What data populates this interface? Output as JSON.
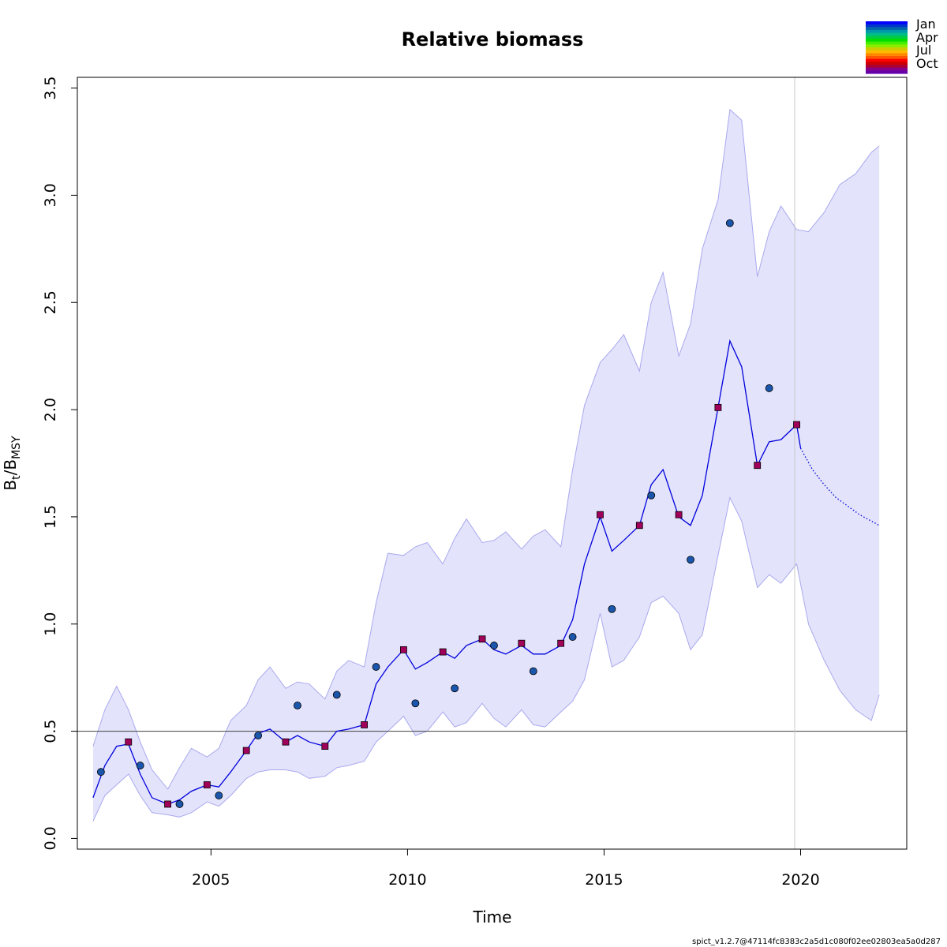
{
  "chart_data": {
    "type": "line",
    "title": "Relative biomass",
    "xlabel": "Time",
    "ylabel_main": "B",
    "ylabel_sub1": "t",
    "ylabel_sep": "/B",
    "ylabel_sub2": "MSY",
    "xlim": [
      2001.6,
      2022.7
    ],
    "ylim": [
      -0.05,
      3.55
    ],
    "x_ticks": [
      2005,
      2010,
      2015,
      2020
    ],
    "y_ticks": [
      0.0,
      0.5,
      1.0,
      1.5,
      2.0,
      2.5,
      3.0,
      3.5
    ],
    "x_tick_labels": [
      "2005",
      "2010",
      "2015",
      "2020"
    ],
    "y_tick_labels": [
      "0.0",
      "0.5",
      "1.0",
      "1.5",
      "2.0",
      "2.5",
      "3.0",
      "3.5"
    ],
    "reference_line_y": 0.5,
    "vertical_line_x": 2019.85,
    "colors": {
      "band_fill": "#e3e3fb",
      "band_edge": "#a9a9ee",
      "estimate_line": "#0000dd",
      "jan_points": "#1a56ab",
      "oct_points": "#a0005a",
      "reference_line": "#555555",
      "vertical_line": "#c8c8c8"
    },
    "series": [
      {
        "key": "estimate",
        "x": [
          2002.0,
          2002.3,
          2002.6,
          2002.9,
          2003.2,
          2003.5,
          2003.9,
          2004.2,
          2004.5,
          2004.9,
          2005.2,
          2005.5,
          2005.9,
          2006.2,
          2006.5,
          2006.9,
          2007.2,
          2007.5,
          2007.9,
          2008.2,
          2008.5,
          2008.9,
          2009.2,
          2009.5,
          2009.9,
          2010.2,
          2010.5,
          2010.9,
          2011.2,
          2011.5,
          2011.9,
          2012.2,
          2012.5,
          2012.9,
          2013.2,
          2013.5,
          2013.9,
          2014.2,
          2014.5,
          2014.9,
          2015.2,
          2015.5,
          2015.9,
          2016.2,
          2016.5,
          2016.9,
          2017.2,
          2017.5,
          2017.9,
          2018.2,
          2018.5,
          2018.9,
          2019.2,
          2019.5,
          2019.9,
          2020.0
        ],
        "y": [
          0.19,
          0.34,
          0.43,
          0.44,
          0.3,
          0.19,
          0.16,
          0.18,
          0.22,
          0.25,
          0.24,
          0.31,
          0.41,
          0.49,
          0.51,
          0.45,
          0.48,
          0.45,
          0.43,
          0.5,
          0.51,
          0.53,
          0.72,
          0.8,
          0.88,
          0.79,
          0.82,
          0.87,
          0.84,
          0.9,
          0.93,
          0.88,
          0.86,
          0.9,
          0.86,
          0.86,
          0.9,
          1.02,
          1.28,
          1.5,
          1.34,
          1.39,
          1.46,
          1.65,
          1.72,
          1.5,
          1.46,
          1.6,
          2.01,
          2.32,
          2.2,
          1.74,
          1.85,
          1.86,
          1.93,
          1.82
        ]
      },
      {
        "key": "forecast",
        "x": [
          2020.0,
          2020.3,
          2020.6,
          2020.9,
          2021.2,
          2021.5,
          2021.8,
          2022.0
        ],
        "y": [
          1.82,
          1.72,
          1.65,
          1.59,
          1.55,
          1.51,
          1.48,
          1.46
        ]
      },
      {
        "key": "ci_upper",
        "x": [
          2002.0,
          2002.3,
          2002.6,
          2002.9,
          2003.2,
          2003.5,
          2003.9,
          2004.2,
          2004.5,
          2004.9,
          2005.2,
          2005.5,
          2005.9,
          2006.2,
          2006.5,
          2006.9,
          2007.2,
          2007.5,
          2007.9,
          2008.2,
          2008.5,
          2008.9,
          2009.2,
          2009.5,
          2009.9,
          2010.2,
          2010.5,
          2010.9,
          2011.2,
          2011.5,
          2011.9,
          2012.2,
          2012.5,
          2012.9,
          2013.2,
          2013.5,
          2013.9,
          2014.2,
          2014.5,
          2014.9,
          2015.2,
          2015.5,
          2015.9,
          2016.2,
          2016.5,
          2016.9,
          2017.2,
          2017.5,
          2017.9,
          2018.2,
          2018.5,
          2018.9,
          2019.2,
          2019.5,
          2019.9,
          2020.2,
          2020.6,
          2021.0,
          2021.4,
          2021.8,
          2022.0
        ],
        "y": [
          0.43,
          0.6,
          0.71,
          0.6,
          0.45,
          0.32,
          0.23,
          0.33,
          0.42,
          0.38,
          0.42,
          0.55,
          0.62,
          0.74,
          0.8,
          0.7,
          0.73,
          0.72,
          0.65,
          0.78,
          0.83,
          0.8,
          1.1,
          1.33,
          1.32,
          1.36,
          1.38,
          1.28,
          1.4,
          1.49,
          1.38,
          1.39,
          1.43,
          1.35,
          1.41,
          1.44,
          1.36,
          1.72,
          2.02,
          2.22,
          2.28,
          2.35,
          2.18,
          2.5,
          2.64,
          2.25,
          2.4,
          2.75,
          2.98,
          3.4,
          3.35,
          2.62,
          2.83,
          2.95,
          2.84,
          2.83,
          2.92,
          3.05,
          3.1,
          3.2,
          3.23
        ]
      },
      {
        "key": "ci_lower",
        "x": [
          2002.0,
          2002.3,
          2002.6,
          2002.9,
          2003.2,
          2003.5,
          2003.9,
          2004.2,
          2004.5,
          2004.9,
          2005.2,
          2005.5,
          2005.9,
          2006.2,
          2006.5,
          2006.9,
          2007.2,
          2007.5,
          2007.9,
          2008.2,
          2008.5,
          2008.9,
          2009.2,
          2009.5,
          2009.9,
          2010.2,
          2010.5,
          2010.9,
          2011.2,
          2011.5,
          2011.9,
          2012.2,
          2012.5,
          2012.9,
          2013.2,
          2013.5,
          2013.9,
          2014.2,
          2014.5,
          2014.9,
          2015.2,
          2015.5,
          2015.9,
          2016.2,
          2016.5,
          2016.9,
          2017.2,
          2017.5,
          2017.9,
          2018.2,
          2018.5,
          2018.9,
          2019.2,
          2019.5,
          2019.9,
          2020.2,
          2020.6,
          2021.0,
          2021.4,
          2021.8,
          2022.0
        ],
        "y": [
          0.08,
          0.2,
          0.25,
          0.3,
          0.2,
          0.12,
          0.11,
          0.1,
          0.12,
          0.17,
          0.15,
          0.2,
          0.28,
          0.31,
          0.32,
          0.32,
          0.31,
          0.28,
          0.29,
          0.33,
          0.34,
          0.36,
          0.45,
          0.5,
          0.57,
          0.48,
          0.5,
          0.59,
          0.52,
          0.54,
          0.63,
          0.56,
          0.52,
          0.6,
          0.53,
          0.52,
          0.59,
          0.64,
          0.74,
          1.05,
          0.8,
          0.83,
          0.94,
          1.1,
          1.13,
          1.05,
          0.88,
          0.95,
          1.32,
          1.59,
          1.48,
          1.17,
          1.23,
          1.19,
          1.28,
          1.0,
          0.83,
          0.69,
          0.6,
          0.55,
          0.67
        ]
      }
    ],
    "observations_jan": {
      "x": [
        2002.2,
        2003.2,
        2004.2,
        2005.2,
        2006.2,
        2007.2,
        2008.2,
        2009.2,
        2010.2,
        2011.2,
        2012.2,
        2013.2,
        2014.2,
        2015.2,
        2016.2,
        2017.2,
        2018.2,
        2019.2
      ],
      "y": [
        0.31,
        0.34,
        0.16,
        0.2,
        0.48,
        0.62,
        0.67,
        0.8,
        0.63,
        0.7,
        0.9,
        0.78,
        0.94,
        1.07,
        1.6,
        1.3,
        2.87,
        2.1
      ]
    },
    "observations_oct": {
      "x": [
        2002.9,
        2003.9,
        2004.9,
        2005.9,
        2006.9,
        2007.9,
        2008.9,
        2009.9,
        2010.9,
        2011.9,
        2012.9,
        2013.9,
        2014.9,
        2015.9,
        2016.9,
        2017.9,
        2018.9,
        2019.9
      ],
      "y": [
        0.45,
        0.16,
        0.25,
        0.41,
        0.45,
        0.43,
        0.53,
        0.88,
        0.87,
        0.93,
        0.91,
        0.91,
        1.51,
        1.46,
        1.51,
        2.01,
        1.74,
        1.93
      ]
    },
    "legend": {
      "labels": [
        "Jan",
        "Apr",
        "Jul",
        "Oct"
      ],
      "gradient_colors": [
        "#0000ff",
        "#0033cc",
        "#0066aa",
        "#0099aa",
        "#00bb88",
        "#00cc44",
        "#00dd00",
        "#44ee00",
        "#88ee00",
        "#cccc00",
        "#ffbb00",
        "#ff8800",
        "#ff5500",
        "#ff0000",
        "#cc0000",
        "#aa0033",
        "#880088",
        "#6600aa"
      ]
    }
  },
  "footer_text": "spict_v1.2.7@47114fc8383c2a5d1c080f02ee02803ea5a0d287"
}
